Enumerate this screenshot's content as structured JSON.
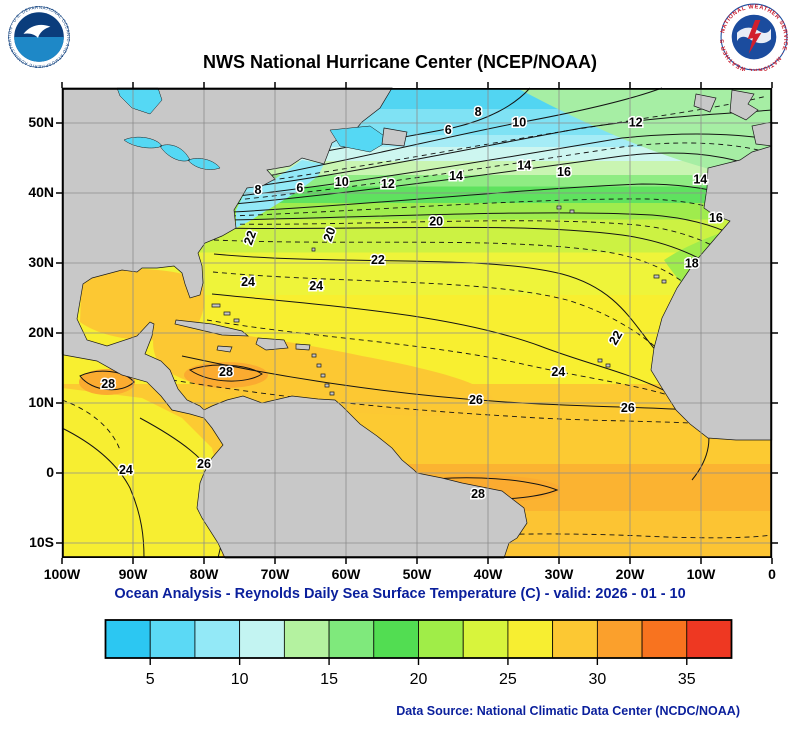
{
  "title": "NWS National Hurricane Center (NCEP/NOAA)",
  "caption": "Ocean Analysis - Reynolds Daily Sea Surface Temperature (C) - valid: 2026 - 01 - 10",
  "data_source": "Data Source: National Climatic Data Center (NCDC/NOAA)",
  "logos": {
    "noaa_ring_text": "NATIONAL OCEANIC AND ATMOSPHERIC ADMINISTRATION · U.S. DEPARTMENT OF COMMERCE",
    "nws_ring_text": "NATIONAL WEATHER SERVICE · NATIONAL WEATHER SERVICE"
  },
  "map": {
    "lon_ticks": [
      {
        "label": "100W",
        "value": -100
      },
      {
        "label": "90W",
        "value": -90
      },
      {
        "label": "80W",
        "value": -80
      },
      {
        "label": "70W",
        "value": -70
      },
      {
        "label": "60W",
        "value": -60
      },
      {
        "label": "50W",
        "value": -50
      },
      {
        "label": "40W",
        "value": -40
      },
      {
        "label": "30W",
        "value": -30
      },
      {
        "label": "20W",
        "value": -20
      },
      {
        "label": "10W",
        "value": -10
      },
      {
        "label": "0",
        "value": 0
      }
    ],
    "lat_ticks": [
      {
        "label": "50N",
        "value": 50
      },
      {
        "label": "40N",
        "value": 40
      },
      {
        "label": "30N",
        "value": 30
      },
      {
        "label": "20N",
        "value": 20
      },
      {
        "label": "10N",
        "value": 10
      },
      {
        "label": "0",
        "value": 0
      },
      {
        "label": "10S",
        "value": -10
      }
    ]
  },
  "colorbar": {
    "min": 2.5,
    "max": 37.5,
    "colors": [
      "#2cc7f2",
      "#5bd9f5",
      "#93e9f7",
      "#c3f4f2",
      "#b4f2a0",
      "#7fe97c",
      "#52dd52",
      "#a0ed48",
      "#d8f43c",
      "#f7ee31",
      "#fcc833",
      "#fba02c",
      "#f8731f",
      "#ee3822"
    ],
    "tick_values": [
      5,
      10,
      15,
      20,
      25,
      30,
      35
    ]
  },
  "chart_data": {
    "type": "heatmap",
    "title": "NWS National Hurricane Center (NCEP/NOAA)",
    "subtitle": "Ocean Analysis - Reynolds Daily Sea Surface Temperature (C) - valid: 2026 - 01 - 10",
    "variable": "Reynolds Daily Sea Surface Temperature",
    "units": "C",
    "valid_date": "2026 - 01 - 10",
    "lon_range_deg_east": [
      -100,
      0
    ],
    "lat_range_deg_north": [
      -12,
      55
    ],
    "contour_interval_c": 2,
    "solid_contours_c": [
      6,
      8,
      10,
      12,
      14,
      16,
      18,
      20,
      22,
      24,
      26,
      28
    ],
    "colorbar_range_c": [
      2.5,
      37.5
    ],
    "colorbar_tick_values_c": [
      5,
      10,
      15,
      20,
      25,
      30,
      35
    ],
    "isotherm_labels": [
      {
        "value": 6,
        "lon": -45.6,
        "lat": 49.0
      },
      {
        "value": 8,
        "lon": -41.4,
        "lat": 51.6
      },
      {
        "value": 10,
        "lon": -35.6,
        "lat": 50.1
      },
      {
        "value": 12,
        "lon": -19.2,
        "lat": 50.1
      },
      {
        "value": 8,
        "lon": -72.4,
        "lat": 40.4
      },
      {
        "value": 6,
        "lon": -66.5,
        "lat": 40.7
      },
      {
        "value": 10,
        "lon": -60.6,
        "lat": 41.6
      },
      {
        "value": 12,
        "lon": -54.1,
        "lat": 41.3
      },
      {
        "value": 14,
        "lon": -44.5,
        "lat": 42.4
      },
      {
        "value": 14,
        "lon": -34.9,
        "lat": 43.9
      },
      {
        "value": 16,
        "lon": -29.3,
        "lat": 43.0
      },
      {
        "value": 14,
        "lon": -10.1,
        "lat": 41.9
      },
      {
        "value": 16,
        "lon": -7.9,
        "lat": 36.4
      },
      {
        "value": 18,
        "lon": -11.3,
        "lat": 29.9
      },
      {
        "value": 20,
        "lon": -47.3,
        "lat": 35.9
      },
      {
        "value": 20,
        "lon": -62.3,
        "lat": 34.1,
        "rot": -70
      },
      {
        "value": 22,
        "lon": -73.5,
        "lat": 33.6,
        "rot": -70
      },
      {
        "value": 22,
        "lon": -55.5,
        "lat": 30.4
      },
      {
        "value": 24,
        "lon": -73.8,
        "lat": 27.3
      },
      {
        "value": 24,
        "lon": -64.2,
        "lat": 26.7
      },
      {
        "value": 22,
        "lon": -22.0,
        "lat": 19.3,
        "rot": -60
      },
      {
        "value": 24,
        "lon": -30.1,
        "lat": 14.4
      },
      {
        "value": 28,
        "lon": -93.5,
        "lat": 12.7
      },
      {
        "value": 28,
        "lon": -76.9,
        "lat": 14.4
      },
      {
        "value": 26,
        "lon": -41.7,
        "lat": 10.4
      },
      {
        "value": 26,
        "lon": -20.3,
        "lat": 9.3
      },
      {
        "value": 24,
        "lon": -91.0,
        "lat": 0.4
      },
      {
        "value": 26,
        "lon": -80.0,
        "lat": 1.3
      },
      {
        "value": 28,
        "lon": -41.4,
        "lat": -3.0
      }
    ]
  }
}
